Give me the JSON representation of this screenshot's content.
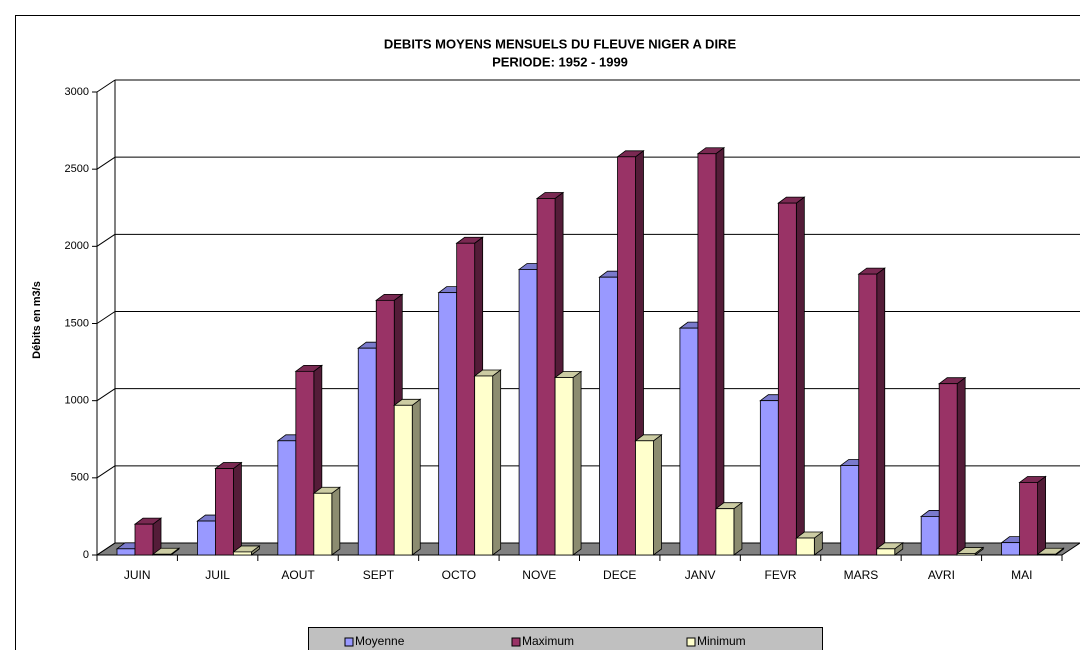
{
  "chart_data": {
    "type": "bar3d",
    "title": "DEBITS MOYENS MENSUELS DU FLEUVE NIGER A DIRE",
    "subtitle": "PERIODE: 1952 - 1999",
    "y_label": "Débits en m3/s",
    "categories": [
      "JUIN",
      "JUIL",
      "AOUT",
      "SEPT",
      "OCTO",
      "NOVE",
      "DECE",
      "JANV",
      "FEVR",
      "MARS",
      "AVRI",
      "MAI"
    ],
    "series": [
      {
        "name": "Moyenne",
        "color": "#9999ff",
        "values": [
          40,
          220,
          740,
          1340,
          1700,
          1850,
          1800,
          1470,
          1000,
          580,
          250,
          80
        ]
      },
      {
        "name": "Maximum",
        "color": "#993366",
        "values": [
          200,
          560,
          1190,
          1650,
          2020,
          2310,
          2580,
          2600,
          2280,
          1820,
          1110,
          470
        ]
      },
      {
        "name": "Minimum",
        "color": "#ffffcc",
        "values": [
          5,
          20,
          400,
          970,
          1160,
          1150,
          740,
          300,
          110,
          40,
          10,
          5
        ]
      }
    ],
    "ylim": [
      0,
      3000
    ],
    "yticks": [
      0,
      500,
      1000,
      1500,
      2000,
      2500,
      3000
    ],
    "grid": true,
    "legend": "bottom"
  }
}
